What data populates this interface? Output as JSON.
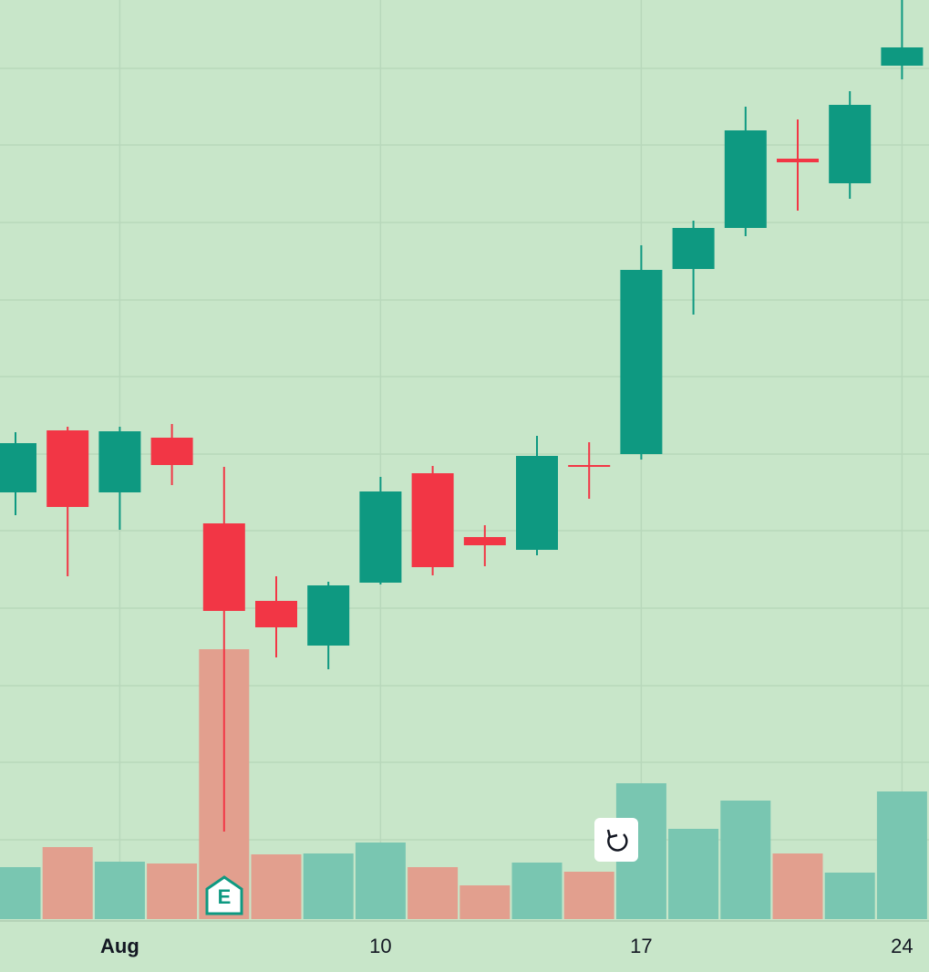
{
  "chart_data": {
    "type": "candlestick",
    "categories": [
      null,
      null,
      "Aug",
      null,
      null,
      null,
      null,
      "10",
      null,
      null,
      null,
      null,
      "17",
      null,
      null,
      null,
      null,
      "24"
    ],
    "open": [
      468,
      536,
      468,
      528,
      434,
      349,
      300,
      369,
      489,
      419,
      405,
      498,
      510,
      713,
      758,
      834,
      807,
      936
    ],
    "close": [
      522,
      452,
      535,
      498,
      338,
      320,
      366,
      469,
      386,
      410,
      508,
      496,
      712,
      758,
      865,
      830,
      893,
      956
    ],
    "high": [
      534,
      540,
      540,
      543,
      496,
      376,
      370,
      485,
      497,
      432,
      530,
      523,
      739,
      766,
      891,
      877,
      908,
      1008
    ],
    "low": [
      443,
      376,
      427,
      476,
      96,
      287,
      274,
      367,
      377,
      387,
      399,
      461,
      504,
      663,
      749,
      777,
      790,
      921
    ],
    "volume": [
      57,
      79,
      63,
      61,
      296,
      71,
      72,
      84,
      57,
      37,
      62,
      52,
      149,
      99,
      130,
      72,
      51,
      140
    ],
    "ylim": [
      0,
      1008
    ],
    "volume_ylim": [
      0,
      1008
    ],
    "yticks": [
      87,
      172,
      256,
      341,
      426,
      510,
      595,
      679,
      764,
      849,
      933
    ],
    "grid": true,
    "up_color": "#0e9981",
    "down_color": "#f23645",
    "volume_up_color": "#79c6b1",
    "volume_down_color": "#e29f8e",
    "annotations": [
      "E"
    ]
  }
}
